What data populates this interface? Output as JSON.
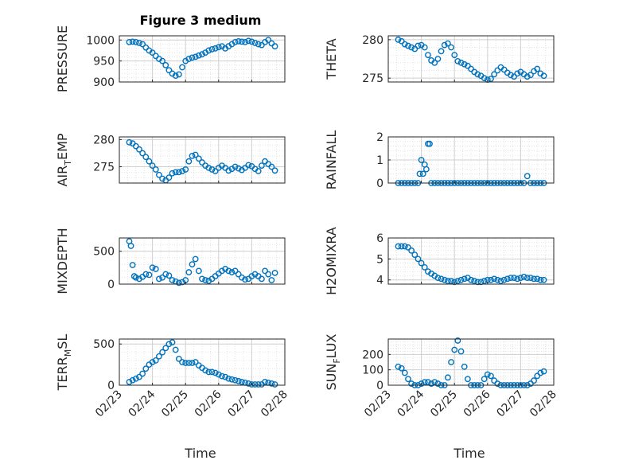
{
  "figure": {
    "title": "Figure 3 medium",
    "xlabel": "Time",
    "marker_color": "#0072BD",
    "axes_color": "#262626",
    "grid_color": "#d9d9d9"
  },
  "chart_data": [
    {
      "type": "scatter",
      "title": "Figure 3 medium",
      "ylabel": "PRESSURE",
      "ylim": [
        900,
        1010
      ],
      "yticks": [
        900,
        950,
        1000
      ],
      "xticks": [
        "02/23",
        "02/24",
        "02/25",
        "02/26",
        "02/27",
        "02/28"
      ],
      "xlabel": "",
      "grid": true,
      "x": [
        0.3,
        0.4,
        0.5,
        0.6,
        0.7,
        0.8,
        0.9,
        1.0,
        1.1,
        1.2,
        1.3,
        1.4,
        1.5,
        1.6,
        1.7,
        1.8,
        1.9,
        2.0,
        2.1,
        2.2,
        2.3,
        2.4,
        2.5,
        2.6,
        2.7,
        2.8,
        2.9,
        3.0,
        3.1,
        3.2,
        3.3,
        3.4,
        3.5,
        3.6,
        3.7,
        3.8,
        3.9,
        4.0,
        4.1,
        4.2,
        4.3,
        4.4,
        4.5,
        4.6,
        4.7
      ],
      "values": [
        995,
        996,
        995,
        993,
        990,
        982,
        975,
        970,
        962,
        955,
        950,
        940,
        928,
        920,
        915,
        918,
        935,
        950,
        955,
        958,
        960,
        963,
        966,
        970,
        975,
        978,
        980,
        983,
        985,
        980,
        985,
        990,
        995,
        997,
        996,
        995,
        998,
        996,
        993,
        990,
        988,
        995,
        1000,
        992,
        985
      ]
    },
    {
      "type": "scatter",
      "ylabel": "THETA",
      "ylim": [
        274.5,
        280.5
      ],
      "yticks": [
        275,
        280
      ],
      "xticks": [
        "02/23",
        "02/24",
        "02/25",
        "02/26",
        "02/27",
        "02/28"
      ],
      "xlabel": "",
      "grid": true,
      "x": [
        0.3,
        0.4,
        0.5,
        0.6,
        0.7,
        0.8,
        0.9,
        1.0,
        1.1,
        1.2,
        1.3,
        1.4,
        1.5,
        1.6,
        1.7,
        1.8,
        1.9,
        2.0,
        2.1,
        2.2,
        2.3,
        2.4,
        2.5,
        2.6,
        2.7,
        2.8,
        2.9,
        3.0,
        3.1,
        3.2,
        3.3,
        3.4,
        3.5,
        3.6,
        3.7,
        3.8,
        3.9,
        4.0,
        4.1,
        4.2,
        4.3,
        4.4,
        4.5,
        4.6,
        4.7
      ],
      "values": [
        280,
        279.8,
        279.4,
        279.2,
        279,
        278.8,
        279.2,
        279.3,
        279,
        278,
        277.3,
        277,
        277.5,
        278.5,
        279.3,
        279.5,
        279,
        278,
        277.2,
        277,
        276.8,
        276.6,
        276.2,
        275.8,
        275.5,
        275.3,
        275,
        274.8,
        274.9,
        275.5,
        276,
        276.4,
        276.1,
        275.7,
        275.4,
        275.2,
        275.6,
        275.8,
        275.5,
        275.2,
        275.4,
        275.9,
        276.2,
        275.6,
        275.3
      ]
    },
    {
      "type": "scatter",
      "ylabel": "AIR_TEMP",
      "ylim": [
        272,
        280.5
      ],
      "yticks": [
        275,
        280
      ],
      "xticks": [
        "02/23",
        "02/24",
        "02/25",
        "02/26",
        "02/27",
        "02/28"
      ],
      "xlabel": "",
      "grid": true,
      "x": [
        0.3,
        0.4,
        0.5,
        0.6,
        0.7,
        0.8,
        0.9,
        1.0,
        1.1,
        1.2,
        1.3,
        1.4,
        1.5,
        1.6,
        1.7,
        1.8,
        1.9,
        2.0,
        2.1,
        2.2,
        2.3,
        2.4,
        2.5,
        2.6,
        2.7,
        2.8,
        2.9,
        3.0,
        3.1,
        3.2,
        3.3,
        3.4,
        3.5,
        3.6,
        3.7,
        3.8,
        3.9,
        4.0,
        4.1,
        4.2,
        4.3,
        4.4,
        4.5,
        4.6,
        4.7
      ],
      "values": [
        279.5,
        279.3,
        278.8,
        278.2,
        277.5,
        276.8,
        276,
        275.2,
        274.5,
        273.5,
        272.8,
        272.5,
        273,
        273.8,
        274,
        274,
        274.2,
        274.5,
        276,
        277,
        277.2,
        276.5,
        275.8,
        275.2,
        274.8,
        274.5,
        274.2,
        274.8,
        275.2,
        274.8,
        274.3,
        274.6,
        275,
        274.7,
        274.4,
        274.8,
        275.3,
        275.1,
        274.6,
        274.2,
        275.2,
        276,
        275.5,
        275,
        274.3
      ]
    },
    {
      "type": "scatter",
      "ylabel": "RAINFALL",
      "ylim": [
        0,
        2
      ],
      "yticks": [
        0,
        1,
        2
      ],
      "xticks": [
        "02/23",
        "02/24",
        "02/25",
        "02/26",
        "02/27",
        "02/28"
      ],
      "xlabel": "",
      "grid": true,
      "x": [
        0.3,
        0.4,
        0.5,
        0.6,
        0.7,
        0.8,
        0.9,
        0.95,
        1.0,
        1.05,
        1.1,
        1.15,
        1.2,
        1.25,
        1.3,
        1.4,
        1.5,
        1.6,
        1.7,
        1.8,
        1.9,
        2.0,
        2.1,
        2.2,
        2.3,
        2.4,
        2.5,
        2.6,
        2.7,
        2.8,
        2.9,
        3.0,
        3.1,
        3.2,
        3.3,
        3.4,
        3.5,
        3.6,
        3.7,
        3.8,
        3.9,
        4.0,
        4.1,
        4.2,
        4.3,
        4.4,
        4.5,
        4.6,
        4.7
      ],
      "values": [
        0,
        0,
        0,
        0,
        0,
        0,
        0,
        0.4,
        1.0,
        0.4,
        0.8,
        0.6,
        1.7,
        1.7,
        0,
        0,
        0,
        0,
        0,
        0,
        0,
        0,
        0,
        0,
        0,
        0,
        0,
        0,
        0,
        0,
        0,
        0,
        0,
        0,
        0,
        0,
        0,
        0,
        0,
        0,
        0,
        0,
        0,
        0.3,
        0,
        0,
        0,
        0,
        0
      ]
    },
    {
      "type": "scatter",
      "ylabel": "MIXDEPTH",
      "ylim": [
        0,
        700
      ],
      "yticks": [
        0,
        500
      ],
      "xticks": [
        "02/23",
        "02/24",
        "02/25",
        "02/26",
        "02/27",
        "02/28"
      ],
      "xlabel": "",
      "grid": true,
      "x": [
        0.3,
        0.35,
        0.4,
        0.45,
        0.5,
        0.6,
        0.7,
        0.8,
        0.9,
        1.0,
        1.1,
        1.2,
        1.3,
        1.4,
        1.5,
        1.6,
        1.7,
        1.8,
        1.9,
        2.0,
        2.1,
        2.2,
        2.3,
        2.4,
        2.5,
        2.6,
        2.7,
        2.8,
        2.9,
        3.0,
        3.1,
        3.2,
        3.3,
        3.4,
        3.5,
        3.6,
        3.7,
        3.8,
        3.9,
        4.0,
        4.1,
        4.2,
        4.3,
        4.4,
        4.5,
        4.6,
        4.7
      ],
      "values": [
        650,
        580,
        290,
        120,
        100,
        80,
        110,
        150,
        140,
        250,
        230,
        80,
        100,
        150,
        130,
        60,
        40,
        20,
        30,
        60,
        180,
        300,
        380,
        200,
        80,
        60,
        50,
        80,
        120,
        160,
        200,
        230,
        200,
        180,
        200,
        150,
        100,
        70,
        80,
        120,
        150,
        120,
        80,
        200,
        150,
        60,
        170
      ]
    },
    {
      "type": "scatter",
      "ylabel": "H2OMIXRA",
      "ylim": [
        3.8,
        6
      ],
      "yticks": [
        4,
        5,
        6
      ],
      "xticks": [
        "02/23",
        "02/24",
        "02/25",
        "02/26",
        "02/27",
        "02/28"
      ],
      "xlabel": "",
      "grid": true,
      "x": [
        0.3,
        0.4,
        0.5,
        0.6,
        0.7,
        0.8,
        0.9,
        1.0,
        1.1,
        1.2,
        1.3,
        1.4,
        1.5,
        1.6,
        1.7,
        1.8,
        1.9,
        2.0,
        2.1,
        2.2,
        2.3,
        2.4,
        2.5,
        2.6,
        2.7,
        2.8,
        2.9,
        3.0,
        3.1,
        3.2,
        3.3,
        3.4,
        3.5,
        3.6,
        3.7,
        3.8,
        3.9,
        4.0,
        4.1,
        4.2,
        4.3,
        4.4,
        4.5,
        4.6,
        4.7
      ],
      "values": [
        5.6,
        5.6,
        5.6,
        5.55,
        5.4,
        5.2,
        5.0,
        4.8,
        4.6,
        4.4,
        4.3,
        4.2,
        4.1,
        4.05,
        4.0,
        3.95,
        3.95,
        3.9,
        3.95,
        4.0,
        4.05,
        4.1,
        4.0,
        3.95,
        3.9,
        3.9,
        3.95,
        4.0,
        4.0,
        4.05,
        4.0,
        3.95,
        4.0,
        4.05,
        4.1,
        4.1,
        4.05,
        4.1,
        4.15,
        4.1,
        4.1,
        4.05,
        4.05,
        4.0,
        4.0
      ]
    },
    {
      "type": "scatter",
      "ylabel": "TERR_MSL",
      "ylim": [
        0,
        560
      ],
      "yticks": [
        0,
        500
      ],
      "xticks": [
        "02/23",
        "02/24",
        "02/25",
        "02/26",
        "02/27",
        "02/28"
      ],
      "xlabel": "Time",
      "grid": true,
      "x": [
        0.3,
        0.4,
        0.5,
        0.6,
        0.7,
        0.8,
        0.9,
        1.0,
        1.1,
        1.2,
        1.3,
        1.4,
        1.5,
        1.6,
        1.7,
        1.8,
        1.9,
        2.0,
        2.1,
        2.2,
        2.3,
        2.4,
        2.5,
        2.6,
        2.7,
        2.8,
        2.9,
        3.0,
        3.1,
        3.2,
        3.3,
        3.4,
        3.5,
        3.6,
        3.7,
        3.8,
        3.9,
        4.0,
        4.1,
        4.2,
        4.3,
        4.4,
        4.5,
        4.6,
        4.7
      ],
      "values": [
        40,
        60,
        80,
        100,
        140,
        200,
        250,
        280,
        300,
        350,
        400,
        450,
        500,
        520,
        430,
        320,
        280,
        270,
        270,
        270,
        280,
        240,
        210,
        180,
        160,
        160,
        150,
        130,
        110,
        100,
        80,
        70,
        60,
        50,
        40,
        30,
        20,
        10,
        10,
        10,
        10,
        40,
        30,
        20,
        10
      ]
    },
    {
      "type": "scatter",
      "ylabel": "SUN_FLUX",
      "ylim": [
        0,
        300
      ],
      "yticks": [
        0,
        100,
        200
      ],
      "xticks": [
        "02/23",
        "02/24",
        "02/25",
        "02/26",
        "02/27",
        "02/28"
      ],
      "xlabel": "Time",
      "grid": true,
      "x": [
        0.3,
        0.4,
        0.5,
        0.6,
        0.7,
        0.8,
        0.9,
        1.0,
        1.1,
        1.2,
        1.3,
        1.4,
        1.5,
        1.6,
        1.7,
        1.8,
        1.9,
        2.0,
        2.1,
        2.2,
        2.3,
        2.4,
        2.5,
        2.6,
        2.7,
        2.8,
        2.9,
        3.0,
        3.1,
        3.2,
        3.3,
        3.4,
        3.5,
        3.6,
        3.7,
        3.8,
        3.9,
        4.0,
        4.1,
        4.2,
        4.3,
        4.4,
        4.5,
        4.6,
        4.7
      ],
      "values": [
        120,
        110,
        80,
        40,
        10,
        0,
        0,
        10,
        20,
        20,
        10,
        20,
        10,
        0,
        0,
        50,
        150,
        230,
        290,
        220,
        120,
        40,
        0,
        0,
        0,
        0,
        40,
        70,
        60,
        30,
        10,
        0,
        0,
        0,
        0,
        0,
        0,
        0,
        0,
        0,
        10,
        30,
        60,
        80,
        90
      ]
    }
  ]
}
